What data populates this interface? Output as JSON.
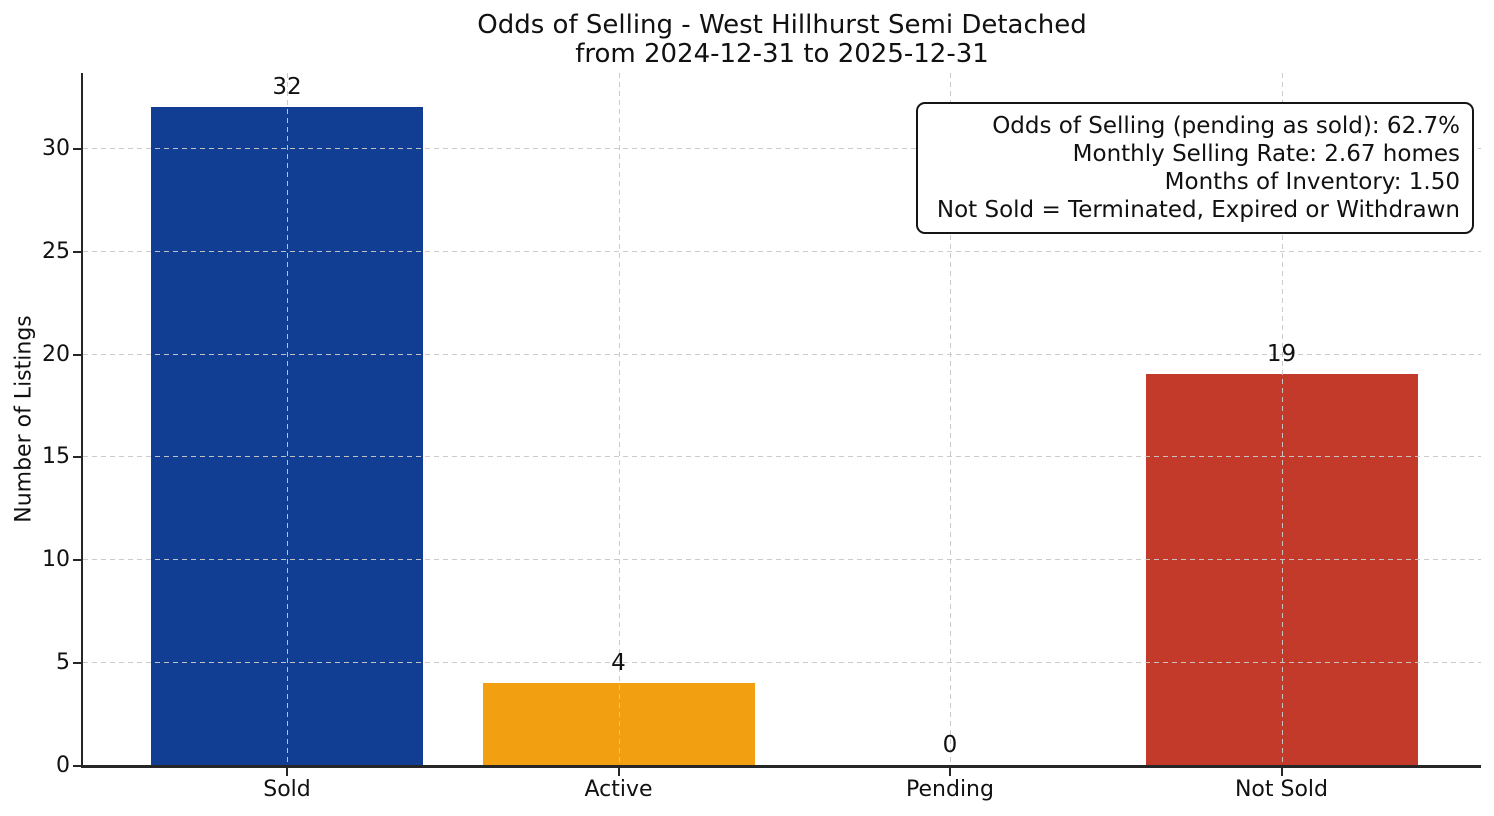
{
  "chart_data": {
    "type": "bar",
    "title": "Odds of Selling - West Hillhurst Semi Detached",
    "subtitle": "from 2024-12-31 to 2025-12-31",
    "categories": [
      "Sold",
      "Active",
      "Pending",
      "Not Sold"
    ],
    "values": [
      32,
      4,
      0,
      19
    ],
    "bar_colors": [
      "#113e92",
      "#f29f11",
      "#b0b0b0",
      "#c43a2a"
    ],
    "xlabel": "",
    "ylabel": "Number of Listings",
    "yticks": [
      0,
      5,
      10,
      15,
      20,
      25,
      30
    ],
    "ylim": [
      0,
      33.64
    ],
    "grid": true,
    "grid_style": "dashed",
    "legend": null,
    "annotation_lines": [
      "Odds of Selling (pending as sold): 62.7%",
      "Monthly Selling Rate: 2.67 homes",
      "Months of Inventory: 1.50",
      "Not Sold = Terminated, Expired or Withdrawn"
    ]
  },
  "colors": {
    "background": "#ffffff",
    "axis": "#262626",
    "text": "#111111",
    "grid": "#c8c8c8"
  }
}
